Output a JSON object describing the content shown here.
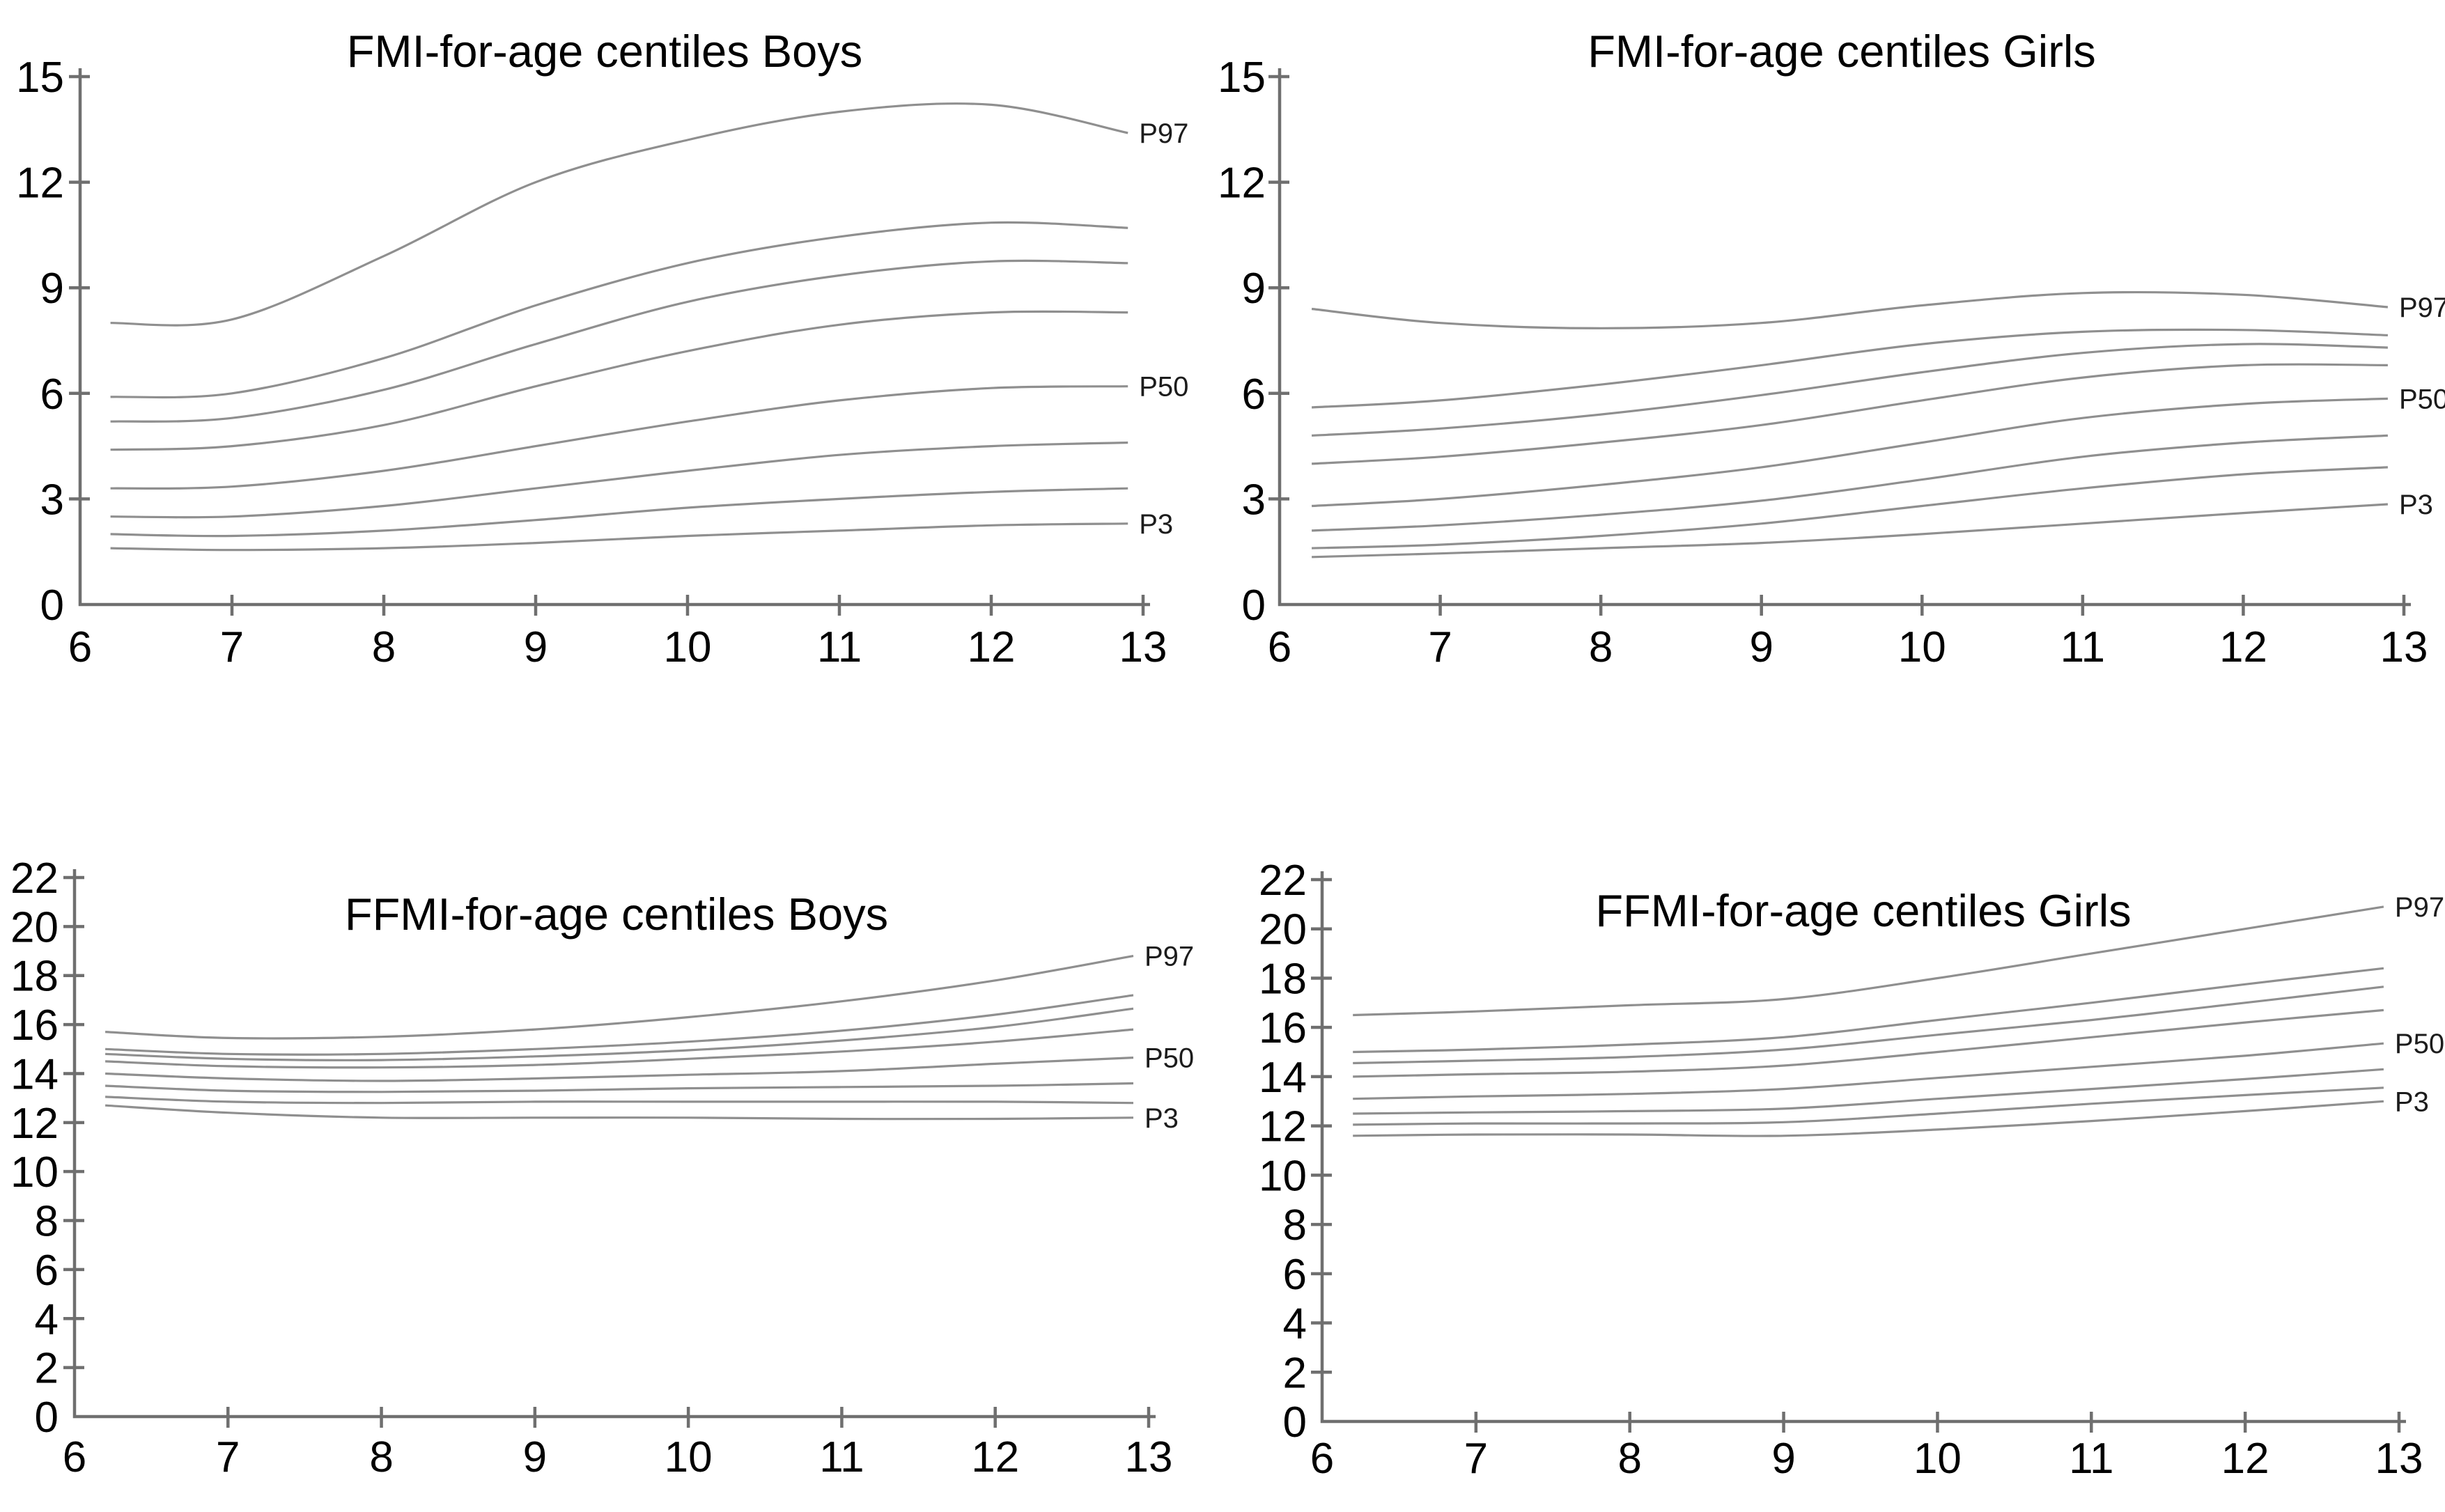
{
  "figure": {
    "background": "#ffffff",
    "curve_color": "#8f8f8f",
    "axis_color": "#6f6f6f",
    "text_color": "#000000"
  },
  "chart_data": [
    {
      "type": "line",
      "id": "fmi-boys",
      "title": "FMI-for-age centiles Boys",
      "xlabel": "",
      "ylabel": "",
      "xlim": [
        6,
        13
      ],
      "ylim": [
        0,
        15
      ],
      "xticks": [
        6,
        7,
        8,
        9,
        10,
        11,
        12,
        13
      ],
      "yticks": [
        0,
        3,
        6,
        9,
        12,
        15
      ],
      "grid": false,
      "legend_position": "right-edge-labels",
      "x": [
        6.2,
        7,
        8,
        9,
        10,
        11,
        12,
        12.9
      ],
      "series": [
        {
          "label": "P97",
          "values": [
            8.0,
            8.1,
            9.9,
            12.0,
            13.2,
            14.0,
            14.2,
            13.4
          ]
        },
        {
          "label": "",
          "values": [
            5.9,
            6.0,
            7.0,
            8.5,
            9.7,
            10.45,
            10.85,
            10.7
          ]
        },
        {
          "label": "",
          "values": [
            5.2,
            5.3,
            6.1,
            7.4,
            8.6,
            9.35,
            9.75,
            9.7
          ]
        },
        {
          "label": "",
          "values": [
            4.4,
            4.5,
            5.1,
            6.2,
            7.2,
            7.95,
            8.3,
            8.3
          ]
        },
        {
          "label": "P50",
          "values": [
            3.3,
            3.35,
            3.8,
            4.5,
            5.2,
            5.8,
            6.15,
            6.2
          ]
        },
        {
          "label": "",
          "values": [
            2.5,
            2.5,
            2.8,
            3.3,
            3.8,
            4.25,
            4.5,
            4.6
          ]
        },
        {
          "label": "",
          "values": [
            2.0,
            1.95,
            2.1,
            2.4,
            2.75,
            3.0,
            3.2,
            3.3
          ]
        },
        {
          "label": "P3",
          "values": [
            1.6,
            1.55,
            1.6,
            1.75,
            1.95,
            2.1,
            2.25,
            2.3
          ]
        }
      ]
    },
    {
      "type": "line",
      "id": "fmi-girls",
      "title": "FMI-for-age centiles Girls",
      "xlabel": "",
      "ylabel": "",
      "xlim": [
        6,
        13
      ],
      "ylim": [
        0,
        15
      ],
      "xticks": [
        6,
        7,
        8,
        9,
        10,
        11,
        12,
        13
      ],
      "yticks": [
        0,
        3,
        6,
        9,
        12,
        15
      ],
      "grid": false,
      "legend_position": "right-edge-labels",
      "x": [
        6.2,
        7,
        8,
        9,
        10,
        11,
        12,
        12.9
      ],
      "series": [
        {
          "label": "P97",
          "values": [
            8.4,
            8.0,
            7.85,
            8.0,
            8.5,
            8.85,
            8.8,
            8.45
          ]
        },
        {
          "label": "",
          "values": [
            5.6,
            5.8,
            6.25,
            6.8,
            7.4,
            7.75,
            7.8,
            7.65
          ]
        },
        {
          "label": "",
          "values": [
            4.8,
            5.0,
            5.4,
            5.95,
            6.6,
            7.15,
            7.4,
            7.3
          ]
        },
        {
          "label": "",
          "values": [
            4.0,
            4.2,
            4.6,
            5.1,
            5.8,
            6.45,
            6.8,
            6.8
          ]
        },
        {
          "label": "P50",
          "values": [
            2.8,
            3.0,
            3.4,
            3.9,
            4.6,
            5.3,
            5.7,
            5.85
          ]
        },
        {
          "label": "",
          "values": [
            2.1,
            2.25,
            2.55,
            2.95,
            3.55,
            4.2,
            4.6,
            4.8
          ]
        },
        {
          "label": "",
          "values": [
            1.6,
            1.7,
            1.95,
            2.3,
            2.8,
            3.3,
            3.7,
            3.9
          ]
        },
        {
          "label": "P3",
          "values": [
            1.35,
            1.45,
            1.6,
            1.75,
            2.0,
            2.3,
            2.6,
            2.85
          ]
        }
      ]
    },
    {
      "type": "line",
      "id": "ffmi-boys",
      "title": "FFMI-for-age centiles Boys",
      "xlabel": "",
      "ylabel": "",
      "xlim": [
        6,
        13
      ],
      "ylim": [
        0,
        22
      ],
      "xticks": [
        6,
        7,
        8,
        9,
        10,
        11,
        12,
        13
      ],
      "yticks": [
        0,
        2,
        4,
        6,
        8,
        10,
        12,
        14,
        16,
        18,
        20,
        22
      ],
      "grid": false,
      "legend_position": "right-edge-labels",
      "x": [
        6.2,
        7,
        8,
        9,
        10,
        11,
        12,
        12.9
      ],
      "series": [
        {
          "label": "P97",
          "values": [
            15.7,
            15.45,
            15.5,
            15.8,
            16.3,
            16.95,
            17.8,
            18.8
          ]
        },
        {
          "label": "",
          "values": [
            15.0,
            14.8,
            14.8,
            15.0,
            15.3,
            15.75,
            16.4,
            17.2
          ]
        },
        {
          "label": "",
          "values": [
            14.8,
            14.6,
            14.55,
            14.7,
            14.95,
            15.35,
            15.9,
            16.65
          ]
        },
        {
          "label": "",
          "values": [
            14.5,
            14.3,
            14.25,
            14.35,
            14.6,
            14.9,
            15.3,
            15.8
          ]
        },
        {
          "label": "P50",
          "values": [
            14.0,
            13.8,
            13.7,
            13.8,
            13.95,
            14.1,
            14.4,
            14.65
          ]
        },
        {
          "label": "",
          "values": [
            13.5,
            13.3,
            13.25,
            13.3,
            13.4,
            13.45,
            13.5,
            13.6
          ]
        },
        {
          "label": "",
          "values": [
            13.05,
            12.85,
            12.8,
            12.85,
            12.85,
            12.85,
            12.85,
            12.8
          ]
        },
        {
          "label": "P3",
          "values": [
            12.7,
            12.4,
            12.2,
            12.2,
            12.2,
            12.15,
            12.15,
            12.2
          ]
        }
      ]
    },
    {
      "type": "line",
      "id": "ffmi-girls",
      "title": "FFMI-for-age centiles Girls",
      "xlabel": "",
      "ylabel": "",
      "xlim": [
        6,
        13
      ],
      "ylim": [
        0,
        22
      ],
      "xticks": [
        6,
        7,
        8,
        9,
        10,
        11,
        12,
        13
      ],
      "yticks": [
        0,
        2,
        4,
        6,
        8,
        10,
        12,
        14,
        16,
        18,
        20,
        22
      ],
      "grid": false,
      "legend_position": "right-edge-labels",
      "x": [
        6.2,
        7,
        8,
        9,
        10,
        11,
        12,
        12.9
      ],
      "series": [
        {
          "label": "P97",
          "values": [
            16.5,
            16.65,
            16.9,
            17.15,
            18.0,
            19.0,
            20.0,
            20.9
          ]
        },
        {
          "label": "",
          "values": [
            15.0,
            15.1,
            15.3,
            15.6,
            16.3,
            17.0,
            17.75,
            18.4
          ]
        },
        {
          "label": "",
          "values": [
            14.55,
            14.65,
            14.8,
            15.1,
            15.7,
            16.3,
            17.0,
            17.65
          ]
        },
        {
          "label": "",
          "values": [
            14.0,
            14.1,
            14.2,
            14.45,
            15.0,
            15.6,
            16.2,
            16.7
          ]
        },
        {
          "label": "P50",
          "values": [
            13.1,
            13.2,
            13.3,
            13.5,
            13.95,
            14.4,
            14.85,
            15.35
          ]
        },
        {
          "label": "",
          "values": [
            12.5,
            12.55,
            12.6,
            12.7,
            13.1,
            13.5,
            13.9,
            14.3
          ]
        },
        {
          "label": "",
          "values": [
            12.05,
            12.1,
            12.1,
            12.15,
            12.5,
            12.9,
            13.25,
            13.55
          ]
        },
        {
          "label": "P3",
          "values": [
            11.6,
            11.65,
            11.65,
            11.6,
            11.85,
            12.2,
            12.6,
            13.0
          ]
        }
      ]
    }
  ]
}
